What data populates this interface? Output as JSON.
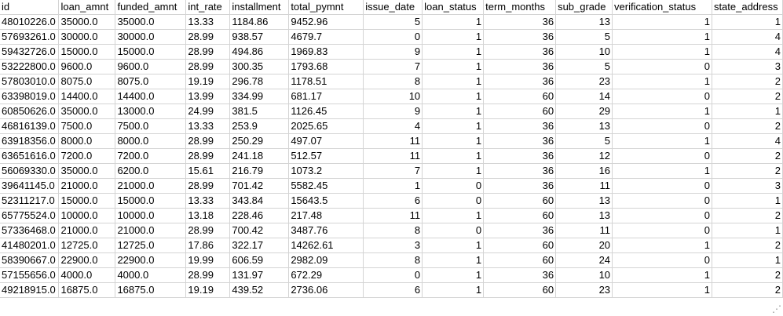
{
  "headers": [
    "id",
    "loan_amnt",
    "funded_amnt",
    "int_rate",
    "installment",
    "total_pymnt",
    "issue_date",
    "loan_status",
    "term_months",
    "sub_grade",
    "verification_status",
    "state_address"
  ],
  "rows": [
    [
      "48010226.0",
      "35000.0",
      "35000.0",
      "13.33",
      "1184.86",
      "9452.96",
      "5",
      "1",
      "36",
      "13",
      "1",
      "1"
    ],
    [
      "57693261.0",
      "30000.0",
      "30000.0",
      "28.99",
      "938.57",
      "4679.7",
      "0",
      "1",
      "36",
      "5",
      "1",
      "4"
    ],
    [
      "59432726.0",
      "15000.0",
      "15000.0",
      "28.99",
      "494.86",
      "1969.83",
      "9",
      "1",
      "36",
      "10",
      "1",
      "4"
    ],
    [
      "53222800.0",
      "9600.0",
      "9600.0",
      "28.99",
      "300.35",
      "1793.68",
      "7",
      "1",
      "36",
      "5",
      "0",
      "3"
    ],
    [
      "57803010.0",
      "8075.0",
      "8075.0",
      "19.19",
      "296.78",
      "1178.51",
      "8",
      "1",
      "36",
      "23",
      "1",
      "2"
    ],
    [
      "63398019.0",
      "14400.0",
      "14400.0",
      "13.99",
      "334.99",
      "681.17",
      "10",
      "1",
      "60",
      "14",
      "0",
      "2"
    ],
    [
      "60850626.0",
      "35000.0",
      "13000.0",
      "24.99",
      "381.5",
      "1126.45",
      "9",
      "1",
      "60",
      "29",
      "1",
      "1"
    ],
    [
      "46816139.0",
      "7500.0",
      "7500.0",
      "13.33",
      "253.9",
      "2025.65",
      "4",
      "1",
      "36",
      "13",
      "0",
      "2"
    ],
    [
      "63918356.0",
      "8000.0",
      "8000.0",
      "28.99",
      "250.29",
      "497.07",
      "11",
      "1",
      "36",
      "5",
      "1",
      "4"
    ],
    [
      "63651616.0",
      "7200.0",
      "7200.0",
      "28.99",
      "241.18",
      "512.57",
      "11",
      "1",
      "36",
      "12",
      "0",
      "2"
    ],
    [
      "56069330.0",
      "35000.0",
      "6200.0",
      "15.61",
      "216.79",
      "1073.2",
      "7",
      "1",
      "36",
      "16",
      "1",
      "2"
    ],
    [
      "39641145.0",
      "21000.0",
      "21000.0",
      "28.99",
      "701.42",
      "5582.45",
      "1",
      "0",
      "36",
      "11",
      "0",
      "3"
    ],
    [
      "52311217.0",
      "15000.0",
      "15000.0",
      "13.33",
      "343.84",
      "15643.5",
      "6",
      "0",
      "60",
      "13",
      "0",
      "1"
    ],
    [
      "65775524.0",
      "10000.0",
      "10000.0",
      "13.18",
      "228.46",
      "217.48",
      "11",
      "1",
      "60",
      "13",
      "0",
      "2"
    ],
    [
      "57336468.0",
      "21000.0",
      "21000.0",
      "28.99",
      "700.42",
      "3487.76",
      "8",
      "0",
      "36",
      "11",
      "0",
      "1"
    ],
    [
      "41480201.0",
      "12725.0",
      "12725.0",
      "17.86",
      "322.17",
      "14262.61",
      "3",
      "1",
      "60",
      "20",
      "1",
      "2"
    ],
    [
      "58390667.0",
      "22900.0",
      "22900.0",
      "19.99",
      "606.59",
      "2982.09",
      "8",
      "1",
      "60",
      "24",
      "0",
      "1"
    ],
    [
      "57155656.0",
      "4000.0",
      "4000.0",
      "28.99",
      "131.97",
      "672.29",
      "0",
      "1",
      "36",
      "10",
      "1",
      "2"
    ],
    [
      "49218915.0",
      "16875.0",
      "16875.0",
      "19.19",
      "439.52",
      "2736.06",
      "6",
      "1",
      "60",
      "23",
      "1",
      "2"
    ]
  ],
  "numeric_columns": [
    6,
    7,
    8,
    9,
    10,
    11
  ],
  "colors": {
    "gridline": "#d4d4d4",
    "text": "#000000",
    "background": "#ffffff"
  },
  "icons": {
    "resize_handle": "resize-grip-icon"
  }
}
